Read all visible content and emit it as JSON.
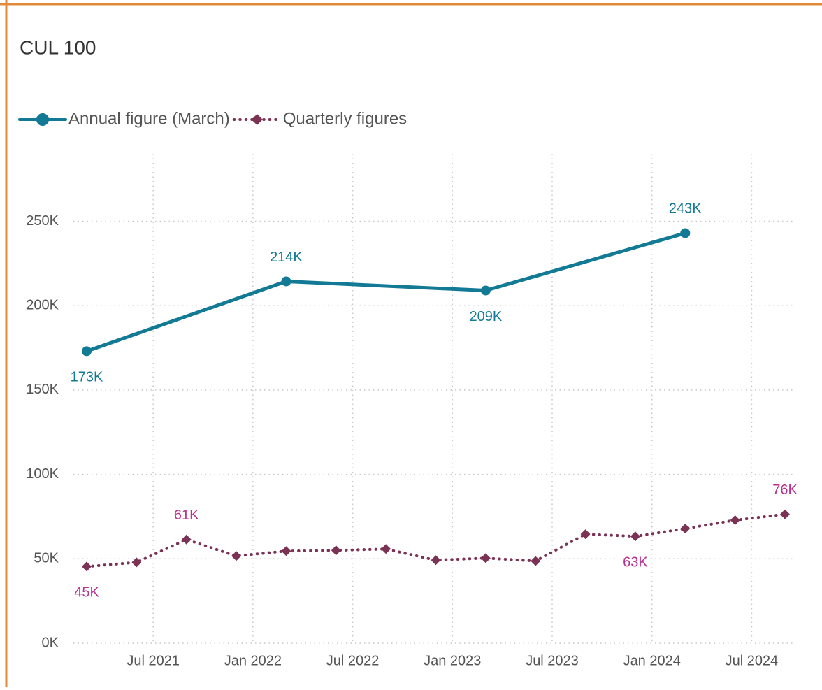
{
  "chart_data": {
    "type": "line",
    "title": "CUL 100",
    "x_format": "YYYY-MM",
    "xlim": [
      "2021-03",
      "2024-09"
    ],
    "xticks": [
      {
        "value": "2021-07",
        "label": "Jul 2021"
      },
      {
        "value": "2022-01",
        "label": "Jan 2022"
      },
      {
        "value": "2022-07",
        "label": "Jul 2022"
      },
      {
        "value": "2023-01",
        "label": "Jan 2023"
      },
      {
        "value": "2023-07",
        "label": "Jul 2023"
      },
      {
        "value": "2024-01",
        "label": "Jan 2024"
      },
      {
        "value": "2024-07",
        "label": "Jul 2024"
      }
    ],
    "ylim": [
      0,
      290000
    ],
    "yticks": [
      {
        "value": 0,
        "label": "0K"
      },
      {
        "value": 50000,
        "label": "50K"
      },
      {
        "value": 100000,
        "label": "100K"
      },
      {
        "value": 150000,
        "label": "150K"
      },
      {
        "value": 200000,
        "label": "200K"
      },
      {
        "value": 250000,
        "label": "250K"
      }
    ],
    "grid": true,
    "legend": "top-left",
    "series": [
      {
        "name": "Annual figure (March)",
        "color": "#137a96",
        "label_color": "#137a96",
        "marker": "circle",
        "dashed": false,
        "x": [
          "2021-03",
          "2022-03",
          "2023-03",
          "2024-03"
        ],
        "values": [
          173000,
          214400,
          209000,
          243000
        ],
        "value_labels": [
          "173K",
          "214K",
          "209K",
          "243K"
        ]
      },
      {
        "name": "Quarterly figures",
        "color": "#7b3355",
        "label_color": "#b8328f",
        "marker": "diamond",
        "dashed": true,
        "x": [
          "2021-03",
          "2021-06",
          "2021-09",
          "2021-12",
          "2022-03",
          "2022-06",
          "2022-09",
          "2022-12",
          "2023-03",
          "2023-06",
          "2023-09",
          "2023-12",
          "2024-03",
          "2024-06",
          "2024-09"
        ],
        "values": [
          45400,
          47900,
          61400,
          51700,
          54600,
          55000,
          55800,
          49200,
          50400,
          48700,
          64600,
          63300,
          67900,
          72900,
          76400
        ],
        "value_labels": [
          "45K",
          null,
          "61K",
          null,
          null,
          null,
          null,
          null,
          null,
          null,
          null,
          "63K",
          null,
          null,
          "76K"
        ]
      }
    ]
  }
}
